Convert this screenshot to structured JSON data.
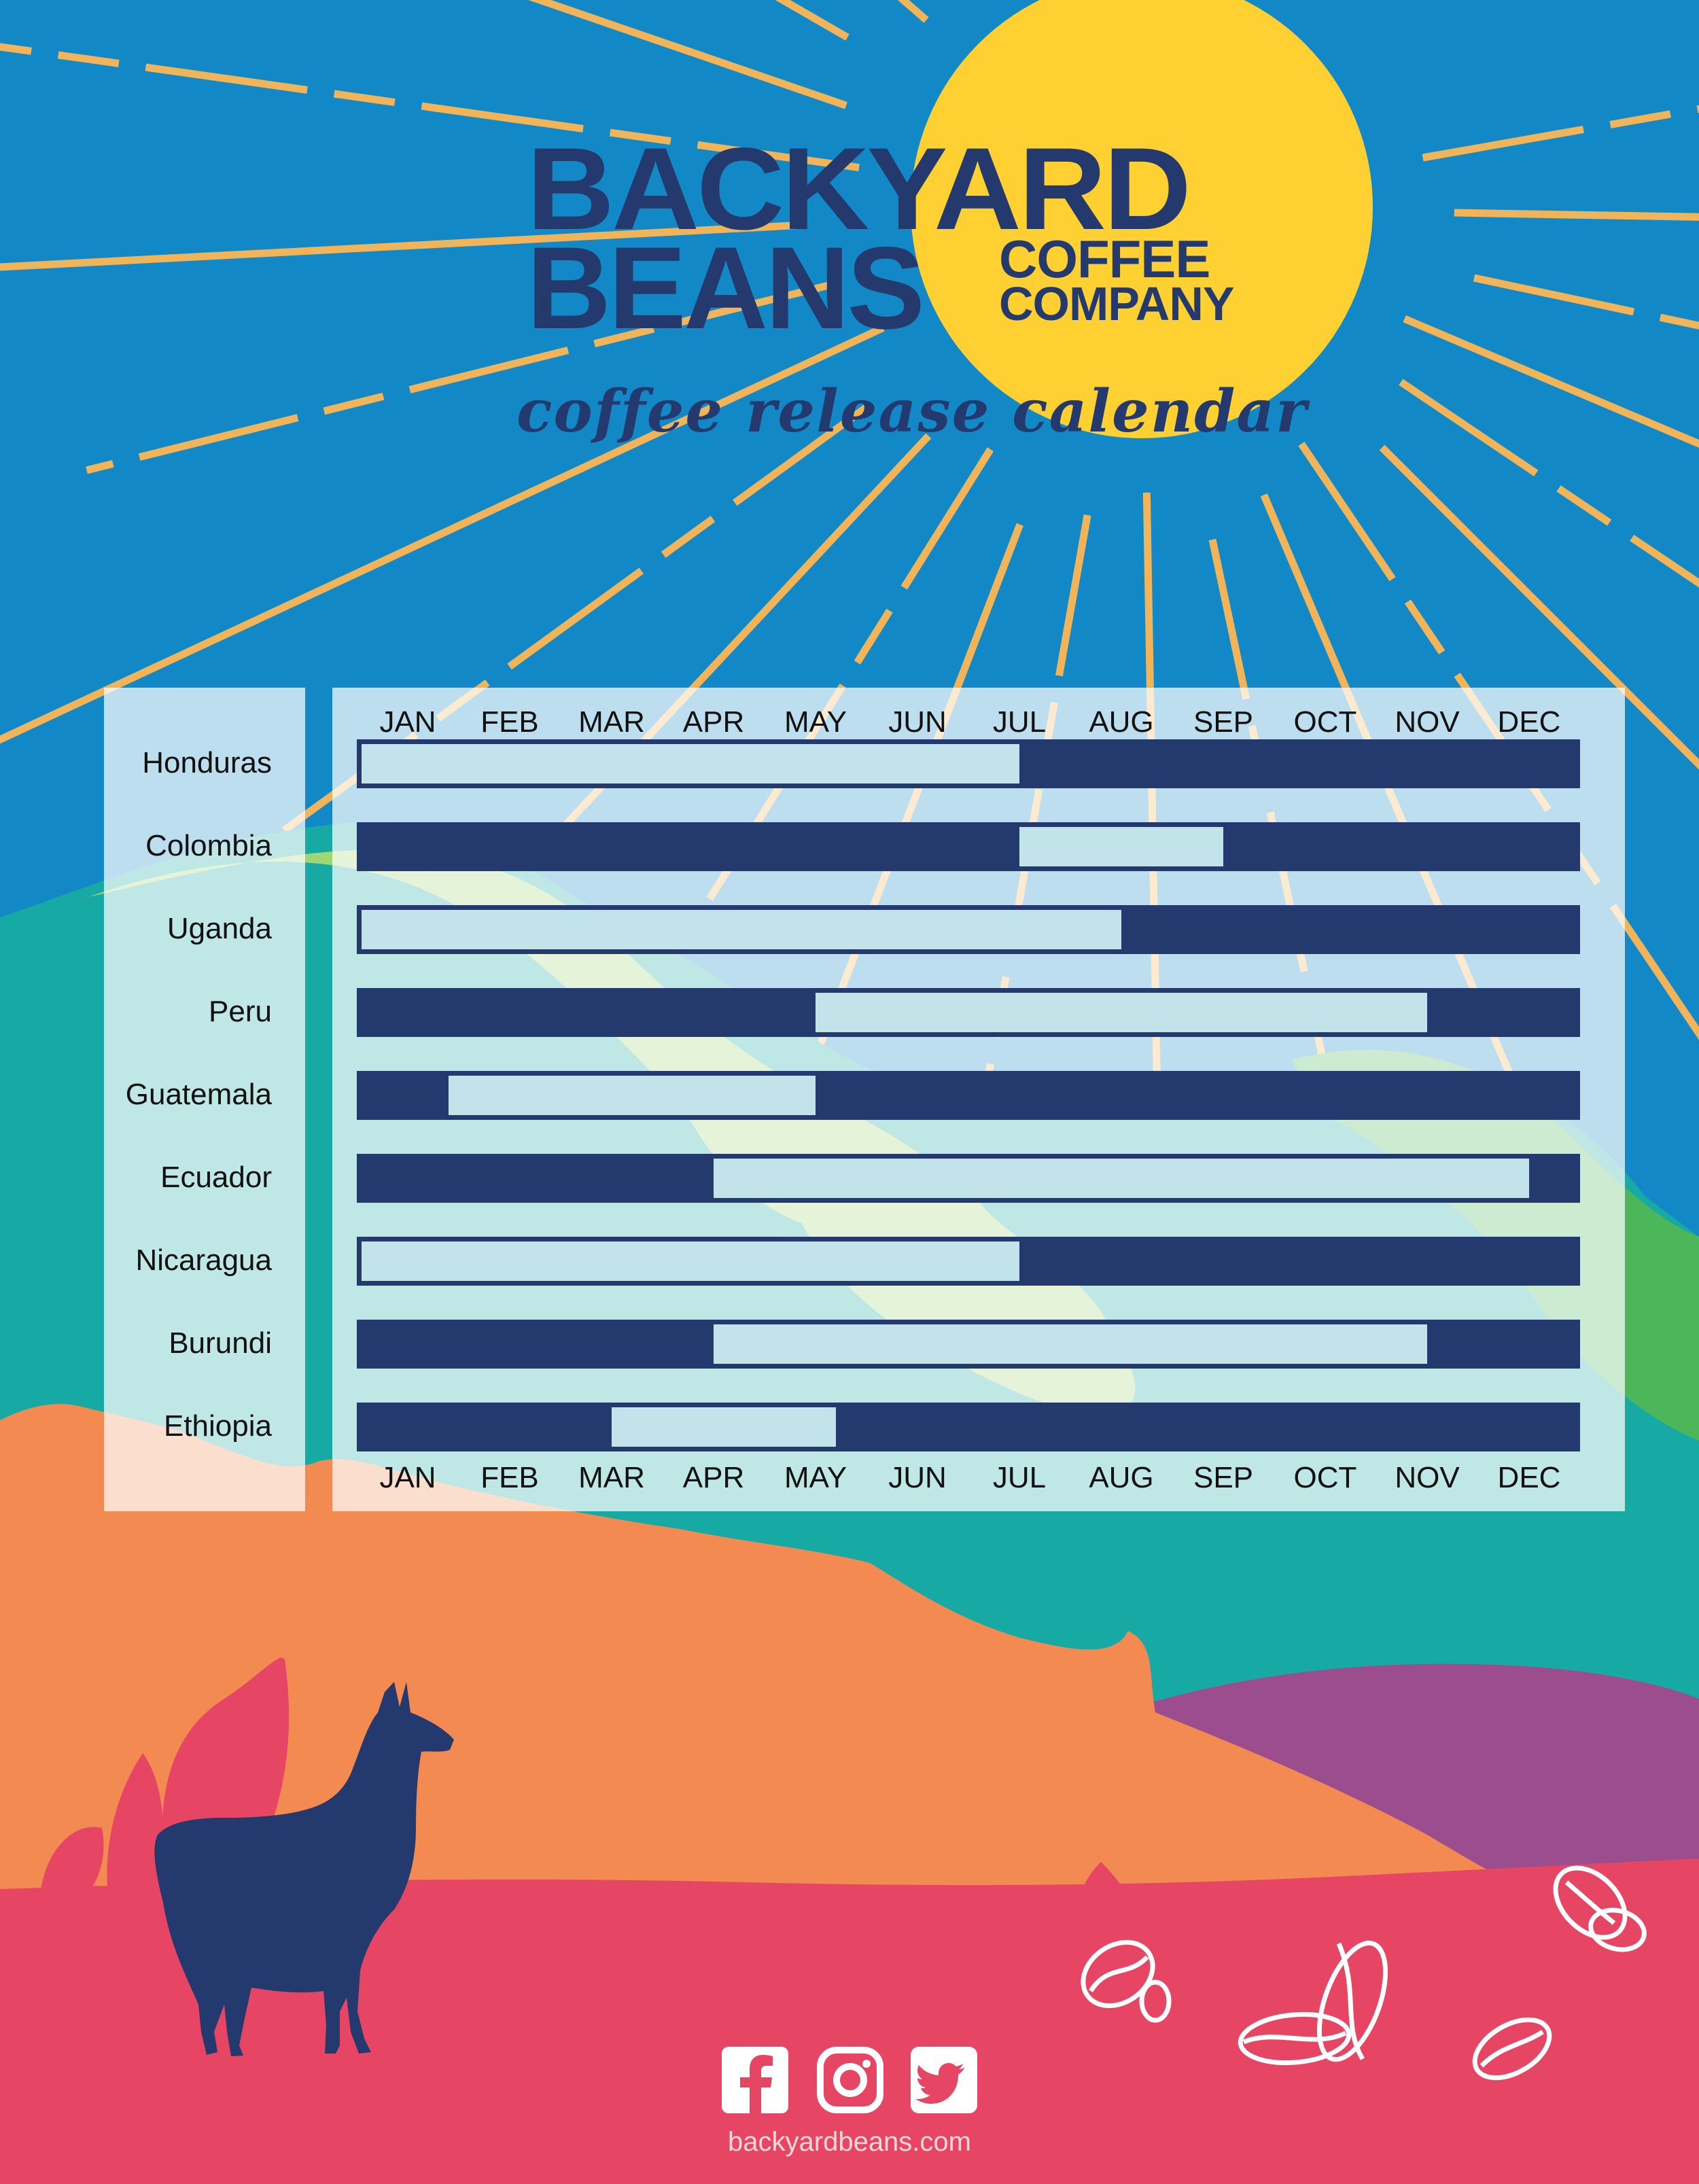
{
  "brand": {
    "line1": "BACKYARD",
    "line2": "BEANS",
    "line3": "COFFEE",
    "line4": "COMPANY",
    "tagline": "coffee release calendar"
  },
  "colors": {
    "sky": "#1289c6",
    "sun": "#fed031",
    "ray": "#f2b459",
    "navy": "#243a6e",
    "light_bar": "#c2e3ea",
    "teal": "#17aaa5",
    "green": "#4cb65a",
    "orange": "#f38a52",
    "purple": "#9b4d8e",
    "pink": "#e64663"
  },
  "chart_data": {
    "type": "table",
    "title": "coffee release calendar",
    "months": [
      "JAN",
      "FEB",
      "MAR",
      "APR",
      "MAY",
      "JUN",
      "JUL",
      "AUG",
      "SEP",
      "OCT",
      "NOV",
      "DEC"
    ],
    "rows": [
      {
        "country": "Honduras",
        "available": [
          [
            1.0,
            7.5
          ]
        ]
      },
      {
        "country": "Colombia",
        "available": [
          [
            7.5,
            9.5
          ]
        ]
      },
      {
        "country": "Uganda",
        "available": [
          [
            1.0,
            8.5
          ]
        ]
      },
      {
        "country": "Peru",
        "available": [
          [
            5.5,
            11.5
          ]
        ]
      },
      {
        "country": "Guatemala",
        "available": [
          [
            1.9,
            5.5
          ]
        ]
      },
      {
        "country": "Ecuador",
        "available": [
          [
            4.5,
            12.5
          ]
        ]
      },
      {
        "country": "Nicaragua",
        "available": [
          [
            1.0,
            7.5
          ]
        ]
      },
      {
        "country": "Burundi",
        "available": [
          [
            4.5,
            11.5
          ]
        ]
      },
      {
        "country": "Ethiopia",
        "available": [
          [
            3.5,
            5.7
          ]
        ]
      }
    ]
  },
  "icons": [
    "facebook-icon",
    "instagram-icon",
    "twitter-icon",
    "llama-icon",
    "coffee-bean-icon"
  ],
  "footer": {
    "url": "backyardbeans.com"
  }
}
